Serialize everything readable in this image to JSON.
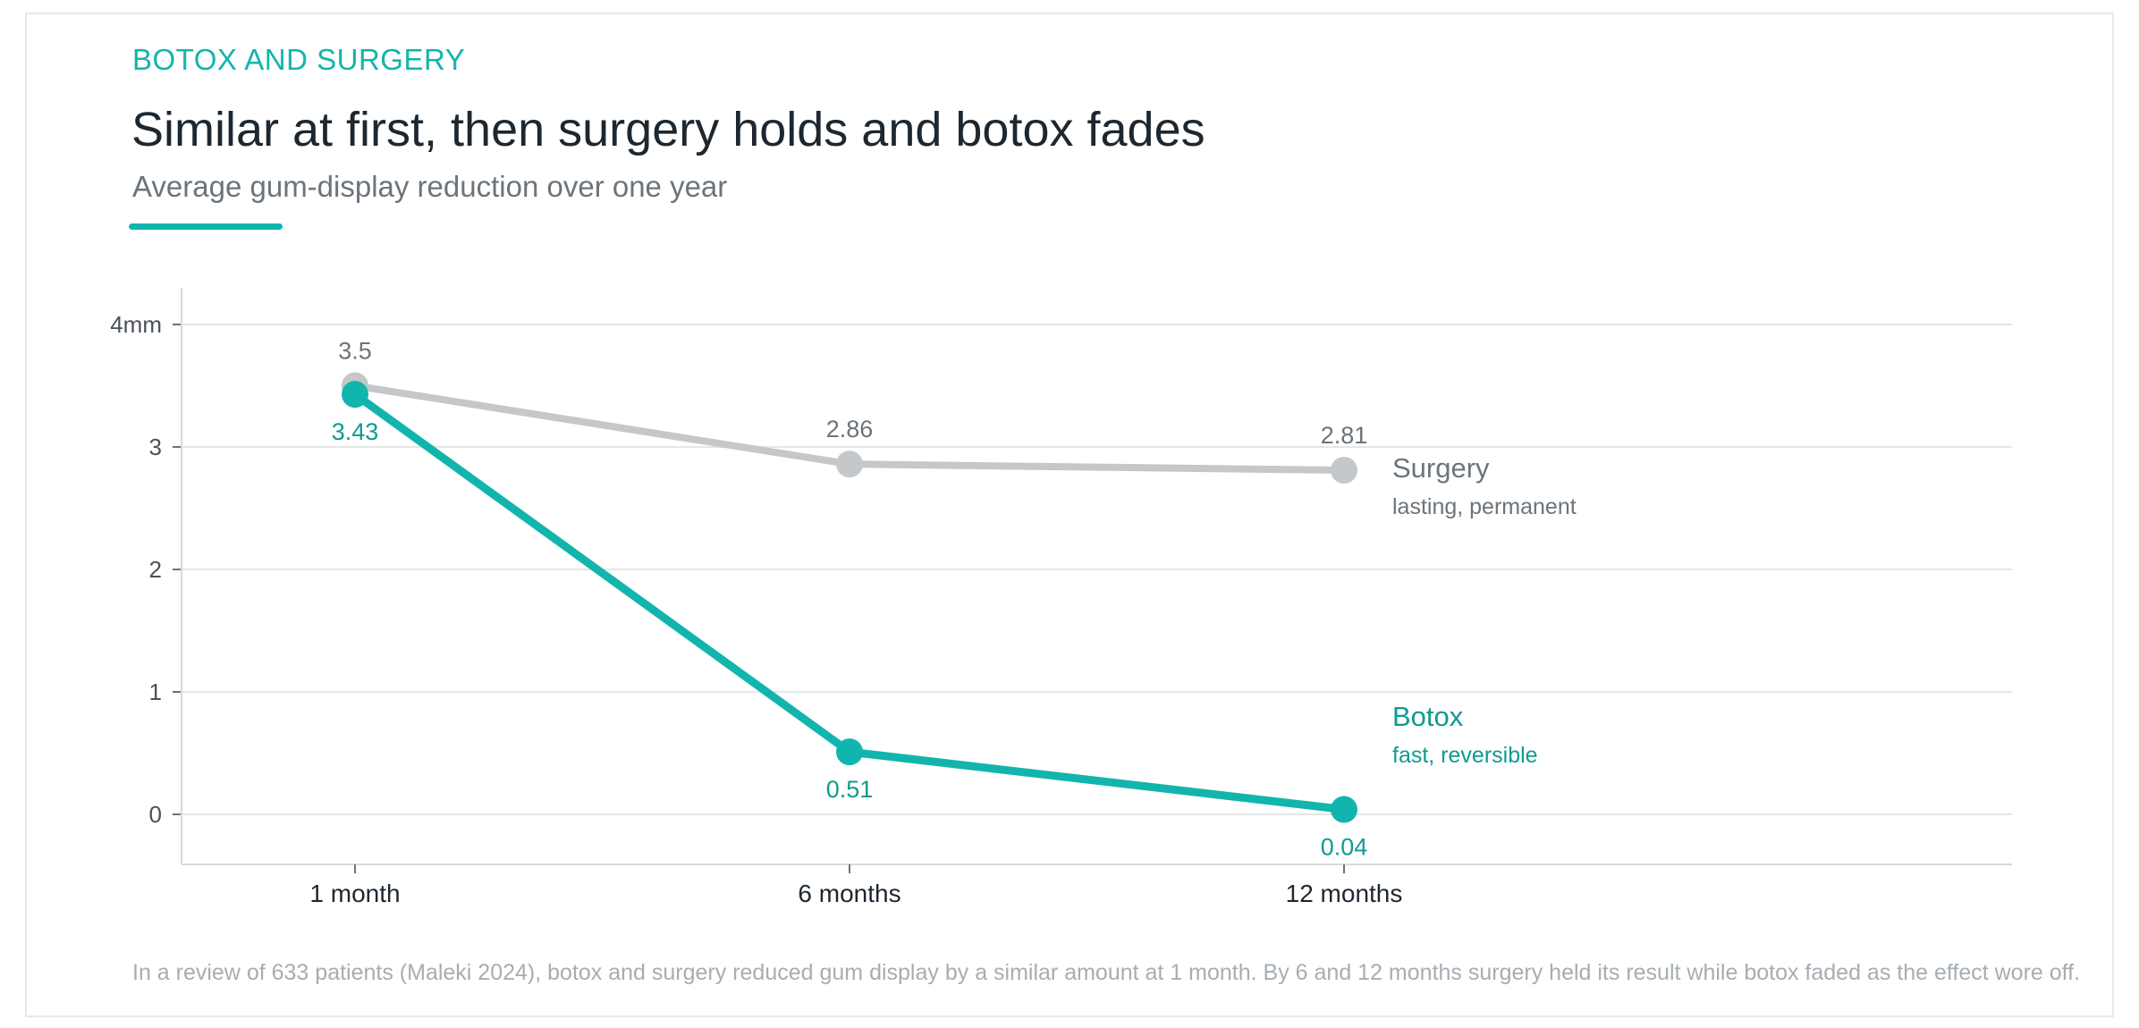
{
  "header": {
    "kicker": "BOTOX AND SURGERY",
    "title": "Similar at first, then surgery holds and botox fades",
    "subtitle": "Average gum-display reduction over one year"
  },
  "footnote": "In a review of 633 patients (Maleki 2024), botox and surgery reduced gum display by a similar amount at 1 month. By 6 and 12 months surgery held its result while botox faded as the effect wore off.",
  "colors": {
    "surgery": "#c4c8cb",
    "botox": "#12b5ad",
    "botox_text": "#0f9a92",
    "surgery_text": "#6b747c",
    "grid": "#e4e6e8",
    "axis": "#d6d9dc"
  },
  "chart_data": {
    "type": "line",
    "title": "Similar at first, then surgery holds and botox fades",
    "subtitle": "Average gum-display reduction over one year",
    "categories": [
      "1 month",
      "6 months",
      "12 months"
    ],
    "y_ticks": [
      {
        "value": 0,
        "label": "0"
      },
      {
        "value": 1,
        "label": "1"
      },
      {
        "value": 2,
        "label": "2"
      },
      {
        "value": 3,
        "label": "3"
      },
      {
        "value": 4,
        "label": "4mm"
      }
    ],
    "ylim": [
      -0.4,
      4.3
    ],
    "grid": true,
    "legend": "direct labels at line ends (right)",
    "series": [
      {
        "name": "Surgery",
        "note": "lasting, permanent",
        "values": [
          3.5,
          2.86,
          2.81
        ],
        "value_labels": [
          "3.5",
          "2.86",
          "2.81"
        ],
        "color": "#c4c8cb",
        "label_position": "above"
      },
      {
        "name": "Botox",
        "note": "fast, reversible",
        "values": [
          3.43,
          0.51,
          0.04
        ],
        "value_labels": [
          "3.43",
          "0.51",
          "0.04"
        ],
        "color": "#12b5ad",
        "label_position": "below"
      }
    ]
  }
}
